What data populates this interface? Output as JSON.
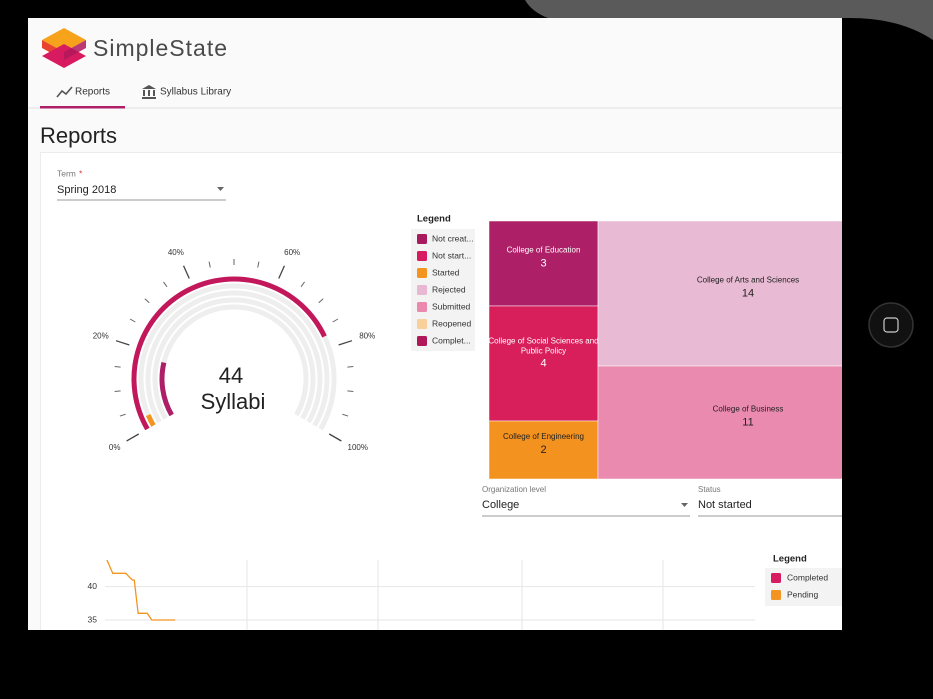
{
  "header": {
    "brand": "SimpleState",
    "tabs": [
      "Reports",
      "Syllabus Library"
    ]
  },
  "page_title": "Reports",
  "term": {
    "label": "Term",
    "required": "*",
    "value": "Spring 2018"
  },
  "gauge": {
    "ticks": [
      {
        "value": 0,
        "label": "0%"
      },
      {
        "value": 20,
        "label": "20%"
      },
      {
        "value": 40,
        "label": "40%"
      },
      {
        "value": 60,
        "label": "60%"
      },
      {
        "value": 80,
        "label": "80%"
      },
      {
        "value": 100,
        "label": "100%"
      }
    ],
    "rings": [
      {
        "color": "#c2185b",
        "value": 77
      },
      {
        "color": "#f39420",
        "value": 3
      },
      {
        "color": "#c2185b",
        "value": 0
      },
      {
        "color": "#c2185b",
        "value": 0
      },
      {
        "color": "#ad1f66",
        "value": 18
      }
    ],
    "total": 44,
    "unit": "Syllabi"
  },
  "status_legend": {
    "title": "Legend",
    "items": [
      {
        "name": "Not creat...",
        "color": "#a8195e"
      },
      {
        "name": "Not start...",
        "color": "#d81b60"
      },
      {
        "name": "Started",
        "color": "#f39420"
      },
      {
        "name": "Rejected",
        "color": "#e8b7d2"
      },
      {
        "name": "Submitted",
        "color": "#ea88ad"
      },
      {
        "name": "Reopened",
        "color": "#f9cf9a"
      },
      {
        "name": "Complet...",
        "color": "#b0185a"
      }
    ]
  },
  "treemap": {
    "cells": [
      {
        "name": "College of Education",
        "value": 3,
        "color": "#ad1f66"
      },
      {
        "name": "College of Social Sciences and Public Policy",
        "value": 4,
        "color": "#d81e5b"
      },
      {
        "name": "College of Engineering",
        "value": 2,
        "color": "#f3921f"
      },
      {
        "name": "College of Arts and Sciences",
        "value": 14,
        "color": "#e8bad3"
      },
      {
        "name": "College of Business",
        "value": 11,
        "color": "#eb8aaf"
      }
    ]
  },
  "filters": [
    {
      "label": "Organization level",
      "value": "College"
    },
    {
      "label": "Status",
      "value": "Not started"
    }
  ],
  "trend_chart": {
    "type": "line",
    "legend_title": "Legend",
    "xlim": [
      0,
      100
    ],
    "ylim": [
      33.5,
      44
    ],
    "yticks": [
      35,
      40
    ],
    "grid": true,
    "series": [
      {
        "name": "Completed",
        "color": "#d81b60"
      },
      {
        "name": "Pending",
        "color": "#f39420",
        "x": [
          0.3,
          1.2,
          3.2,
          4.2,
          4.5,
          5.1,
          6.5,
          7.2,
          10.8
        ],
        "values": [
          44,
          42,
          42,
          41,
          41,
          36,
          36,
          35,
          35
        ]
      }
    ]
  }
}
